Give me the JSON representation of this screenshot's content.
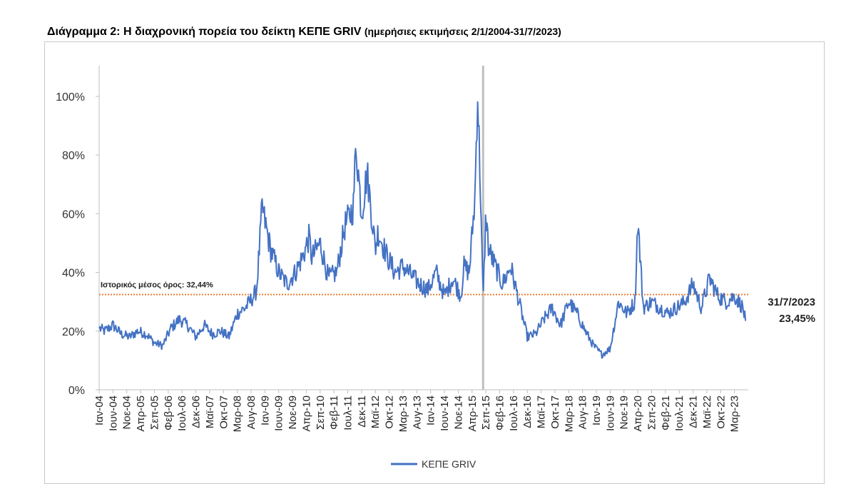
{
  "title": {
    "main": "Διάγραμμα 2: Η διαχρονική πορεία του δείκτη ΚΕΠΕ GRIV",
    "sub": "(ημερήσιες εκτιμήσεις 2/1/2004-31/7/2023)"
  },
  "chart_data": {
    "type": "line",
    "series": [
      {
        "name": "ΚΕΠΕ GRIV",
        "color": "#4472C4",
        "x": [
          "2004-01",
          "2004-03",
          "2004-06",
          "2004-09",
          "2004-12",
          "2005-03",
          "2005-06",
          "2005-09",
          "2005-12",
          "2006-03",
          "2006-06",
          "2006-09",
          "2006-12",
          "2007-03",
          "2007-06",
          "2007-09",
          "2007-12",
          "2008-03",
          "2008-06",
          "2008-09",
          "2008-10",
          "2008-12",
          "2009-03",
          "2009-06",
          "2009-09",
          "2009-12",
          "2010-03",
          "2010-05",
          "2010-06",
          "2010-09",
          "2010-12",
          "2011-03",
          "2011-06",
          "2011-09",
          "2011-10",
          "2011-12",
          "2012-02",
          "2012-05",
          "2012-06",
          "2012-09",
          "2012-12",
          "2013-03",
          "2013-06",
          "2013-09",
          "2013-12",
          "2014-03",
          "2014-06",
          "2014-09",
          "2014-12",
          "2015-01",
          "2015-03",
          "2015-05",
          "2015-06",
          "2015-07",
          "2015-08",
          "2015-09",
          "2015-10",
          "2015-12",
          "2016-03",
          "2016-06",
          "2016-09",
          "2016-12",
          "2017-03",
          "2017-06",
          "2017-09",
          "2017-12",
          "2018-03",
          "2018-06",
          "2018-09",
          "2018-12",
          "2019-03",
          "2019-06",
          "2019-09",
          "2019-12",
          "2020-03",
          "2020-04",
          "2020-06",
          "2020-09",
          "2020-12",
          "2021-03",
          "2021-06",
          "2021-09",
          "2021-12",
          "2022-03",
          "2022-06",
          "2022-09",
          "2022-12",
          "2023-03",
          "2023-06",
          "2023-07"
        ],
        "values": [
          21,
          20,
          22,
          19,
          18,
          20,
          19,
          16,
          15,
          21,
          24,
          22,
          18,
          22,
          19,
          20,
          18,
          26,
          28,
          32,
          34,
          62,
          48,
          40,
          36,
          40,
          46,
          52,
          45,
          50,
          38,
          40,
          56,
          62,
          84,
          60,
          74,
          48,
          54,
          46,
          40,
          42,
          39,
          36,
          34,
          40,
          32,
          38,
          32,
          42,
          40,
          65,
          102,
          70,
          30,
          60,
          48,
          43,
          36,
          42,
          30,
          18,
          19,
          24,
          28,
          22,
          30,
          26,
          20,
          15,
          12,
          14,
          30,
          26,
          30,
          58,
          28,
          30,
          28,
          26,
          28,
          30,
          36,
          28,
          38,
          32,
          30,
          32,
          28,
          23.45
        ]
      }
    ],
    "ylim": [
      0,
      110
    ],
    "yticks": [
      "0%",
      "20%",
      "40%",
      "60%",
      "80%",
      "100%"
    ],
    "ytick_values": [
      0,
      20,
      40,
      60,
      80,
      100
    ],
    "xticks": [
      "Ιαν-04",
      "Ιουν-04",
      "Νοε-04",
      "Απρ-05",
      "Σεπ-05",
      "Φεβ-06",
      "Ιουλ-06",
      "Δεκ-06",
      "Μαϊ-07",
      "Οκτ-07",
      "Μαρ-08",
      "Αυγ-08",
      "Ιαν-09",
      "Ιουν-09",
      "Νοε-09",
      "Απρ-10",
      "Σεπ-10",
      "Φεβ-11",
      "Ιουλ-11",
      "Δεκ-11",
      "Μαϊ-12",
      "Οκτ-12",
      "Μαρ-13",
      "Αυγ-13",
      "Ιαν-14",
      "Ιουν-14",
      "Νοε-14",
      "Απρ-15",
      "Σεπ-15",
      "Φεβ-16",
      "Ιουλ-16",
      "Δεκ-16",
      "Μαϊ-17",
      "Οκτ-17",
      "Μαρ-18",
      "Αυγ-18",
      "Ιαν-19",
      "Ιουν-19",
      "Νοε-19",
      "Απρ-20",
      "Σεπ-20",
      "Φεβ-21",
      "Ιουλ-21",
      "Δεκ-21",
      "Μαϊ-22",
      "Οκτ-22",
      "Μαρ-23"
    ],
    "reference_line": {
      "value": 32.44,
      "color": "#ED7D31",
      "label": "Ιστορικός μέσος όρος: 32,44%"
    },
    "vertical_marker": {
      "x": "2015-08",
      "color": "#bfbfbf"
    },
    "end_annotation": {
      "date": "31/7/2023",
      "value": "23,45%"
    },
    "legend": {
      "position": "bottom",
      "label": "ΚΕΠΕ GRIV"
    },
    "grid": false
  }
}
